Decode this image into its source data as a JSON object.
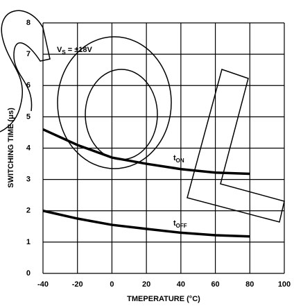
{
  "chart_data": {
    "type": "line",
    "x_label": "TMEPERATURE (°C)",
    "y_label": "SWITCHING TIME (μs)",
    "annotation": {
      "text": "V",
      "subscript": "S",
      "rest": " = ±18V"
    },
    "x": [
      -40,
      -20,
      0,
      20,
      40,
      60,
      80
    ],
    "series": [
      {
        "name": "t",
        "subscript": "ON",
        "color": "#000",
        "values": [
          4.6,
          4.1,
          3.7,
          3.5,
          3.33,
          3.22,
          3.18
        ]
      },
      {
        "name": "t",
        "subscript": "OFF",
        "color": "#000",
        "values": [
          2.0,
          1.75,
          1.55,
          1.42,
          1.3,
          1.22,
          1.18
        ]
      }
    ],
    "xlim": [
      -40,
      100
    ],
    "xticks": [
      -40,
      -20,
      0,
      20,
      40,
      60,
      80,
      100
    ],
    "ylim": [
      0,
      8
    ],
    "yticks": [
      0,
      1,
      2,
      3,
      4,
      5,
      6,
      7,
      8
    ],
    "grid": true
  }
}
